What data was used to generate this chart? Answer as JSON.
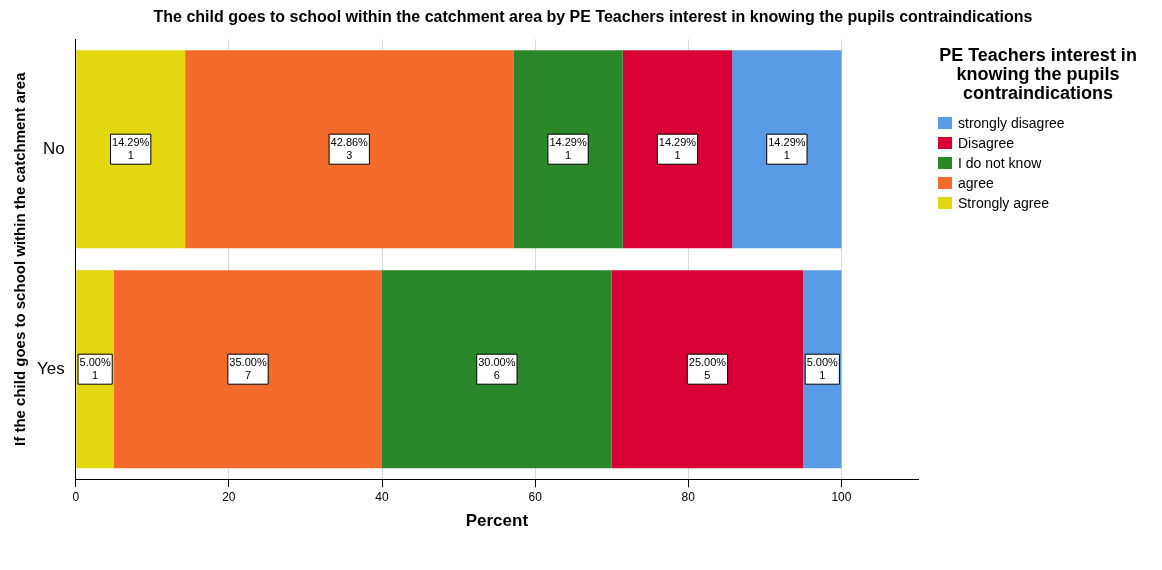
{
  "chart_data": {
    "type": "bar",
    "orientation": "horizontal",
    "stacked": true,
    "title": "The child goes to school within the catchment area by PE Teachers interest in knowing the pupils contraindications",
    "xlabel": "Percent",
    "ylabel": "If the child goes to school within the catchment area",
    "legend_title": "PE Teachers interest in knowing the pupils contraindications",
    "categories": [
      "No",
      "Yes"
    ],
    "series": [
      {
        "name": "Strongly agree",
        "color": "#e3d80f",
        "values": [
          14.29,
          5.0
        ],
        "value_labels": [
          "14.29%\n1",
          "5.00%\n1"
        ]
      },
      {
        "name": "agree",
        "color": "#f26b2b",
        "values": [
          42.86,
          35.0
        ],
        "value_labels": [
          "42.86%\n3",
          "35.00%\n7"
        ]
      },
      {
        "name": "I do not know",
        "color": "#2a882a",
        "values": [
          14.29,
          30.0
        ],
        "value_labels": [
          "14.29%\n1",
          "30.00%\n6"
        ]
      },
      {
        "name": "Disagree",
        "color": "#d80036",
        "values": [
          14.29,
          25.0
        ],
        "value_labels": [
          "14.29%\n1",
          "25.00%\n5"
        ]
      },
      {
        "name": "strongly disagree",
        "color": "#5a9be6",
        "values": [
          14.29,
          5.0
        ],
        "value_labels": [
          "14.29%\n1",
          "5.00%\n1"
        ]
      }
    ],
    "xlim": [
      0,
      110
    ],
    "xticks": [
      0,
      20,
      40,
      60,
      80,
      100
    ],
    "grid": "x",
    "legend": "right"
  }
}
